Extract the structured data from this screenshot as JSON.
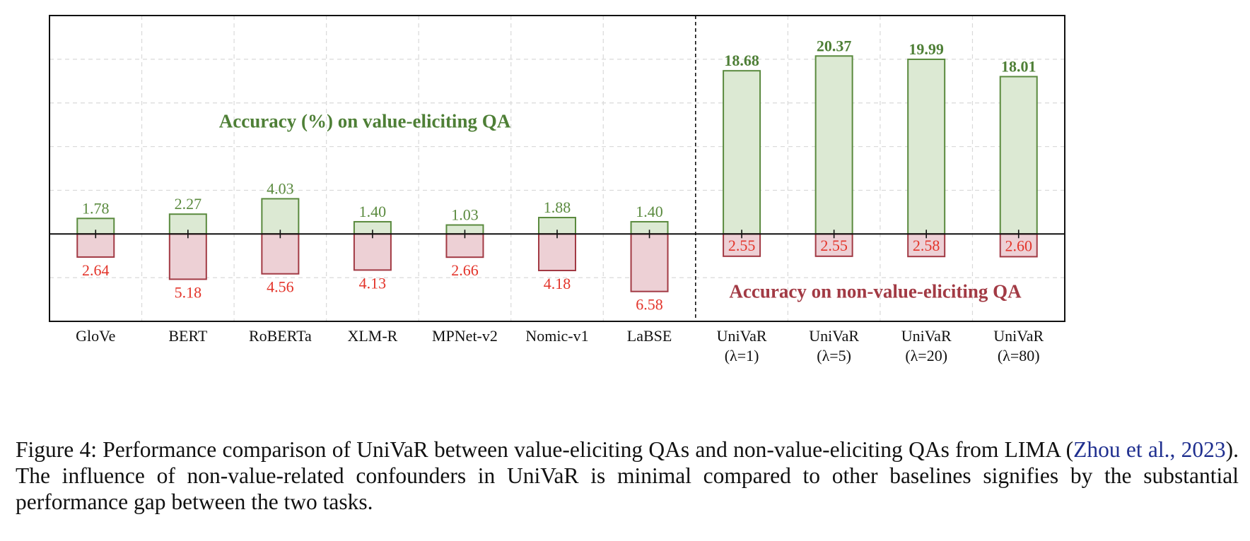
{
  "chart_data": {
    "type": "bar",
    "categories": [
      {
        "name": "GloVe",
        "sub": ""
      },
      {
        "name": "BERT",
        "sub": ""
      },
      {
        "name": "RoBERTa",
        "sub": ""
      },
      {
        "name": "XLM-R",
        "sub": ""
      },
      {
        "name": "MPNet-v2",
        "sub": ""
      },
      {
        "name": "Nomic-v1",
        "sub": ""
      },
      {
        "name": "LaBSE",
        "sub": ""
      },
      {
        "name": "UniVaR",
        "sub": "(λ=1)"
      },
      {
        "name": "UniVaR",
        "sub": "(λ=5)"
      },
      {
        "name": "UniVaR",
        "sub": "(λ=20)"
      },
      {
        "name": "UniVaR",
        "sub": "(λ=80)"
      }
    ],
    "series": [
      {
        "name": "Accuracy (%) on value-eliciting QA",
        "direction": "up",
        "values": [
          1.78,
          2.27,
          4.03,
          1.4,
          1.03,
          1.88,
          1.4,
          18.68,
          20.37,
          19.99,
          18.01
        ],
        "labels": [
          "1.78",
          "2.27",
          "4.03",
          "1.40",
          "1.03",
          "1.88",
          "1.40",
          "18.68",
          "20.37",
          "19.99",
          "18.01"
        ]
      },
      {
        "name": "Accuracy on non-value-eliciting QA",
        "direction": "down",
        "values": [
          2.64,
          5.18,
          4.56,
          4.13,
          2.66,
          4.18,
          6.58,
          2.55,
          2.55,
          2.58,
          2.6
        ],
        "labels": [
          "2.64",
          "5.18",
          "4.56",
          "4.13",
          "2.66",
          "4.18",
          "6.58",
          "2.55",
          "2.55",
          "2.58",
          "2.60"
        ]
      }
    ],
    "ylim": [
      -10,
      25
    ],
    "grid": true,
    "separator_after_index": 6,
    "colors": {
      "up_fill": "#dce9d3",
      "up_stroke": "#5a8a3e",
      "up_text": "#5a8a3e",
      "up_bold_text": "#4e7f36",
      "down_fill": "#edd0d5",
      "down_stroke": "#a23a44",
      "down_text": "#e3342a",
      "down_bold_text": "#a23a44"
    }
  },
  "caption": {
    "prefix": "Figure 4: Performance comparison of UniVaR between value-eliciting QAs and non-value-eliciting QAs from LIMA (",
    "cite_author": "Zhou et al.",
    "cite_sep": ", ",
    "cite_year": "2023",
    "suffix": "). The influence of non-value-related confounders in UniVaR is minimal compared to other baselines signifies by the substantial performance gap between the two tasks."
  }
}
